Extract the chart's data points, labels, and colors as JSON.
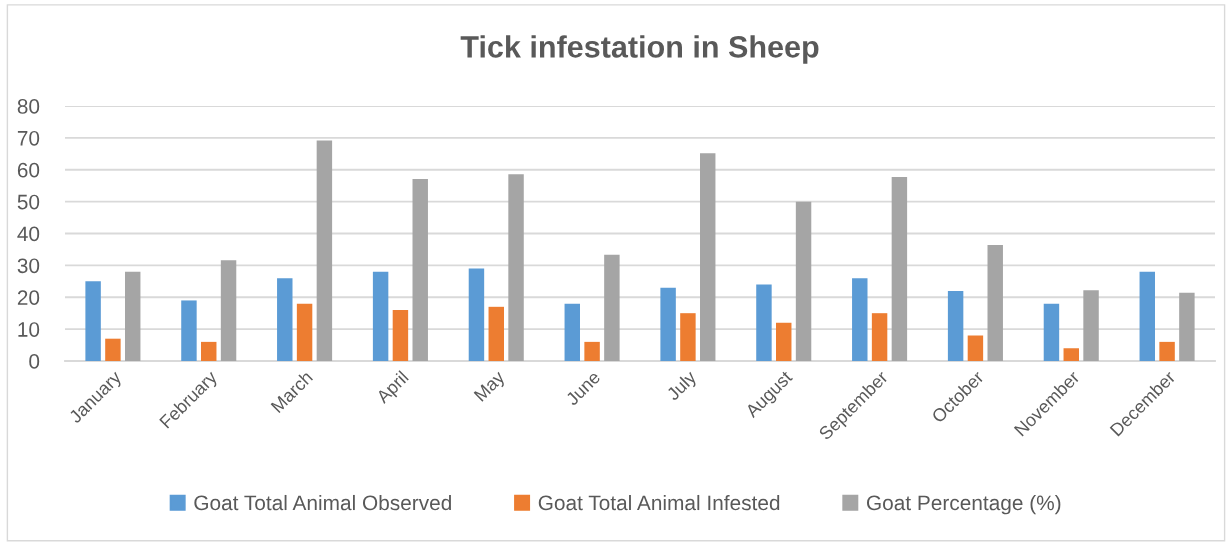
{
  "chart_data": {
    "type": "bar",
    "title": "Tick infestation in Sheep",
    "categories": [
      "January",
      "February",
      "March",
      "April",
      "May",
      "June",
      "July",
      "August",
      "September",
      "October",
      "November",
      "December"
    ],
    "series": [
      {
        "name": "Goat Total Animal Observed",
        "color": "#5b9bd5",
        "values": [
          25,
          19,
          26,
          28,
          29,
          18,
          23,
          24,
          26,
          22,
          18,
          28
        ]
      },
      {
        "name": "Goat Total Animal Infested",
        "color": "#ed7d31",
        "values": [
          7,
          6,
          18,
          16,
          17,
          6,
          15,
          12,
          15,
          8,
          4,
          6
        ]
      },
      {
        "name": "Goat Percentage (%)",
        "color": "#a5a5a5",
        "values": [
          28,
          31.6,
          69.2,
          57.1,
          58.6,
          33.3,
          65.2,
          50,
          57.7,
          36.4,
          22.2,
          21.4
        ]
      }
    ],
    "ylim": [
      0,
      80
    ],
    "yticks": [
      0,
      10,
      20,
      30,
      40,
      50,
      60,
      70,
      80
    ],
    "grid": "y",
    "legend": "bottom"
  }
}
